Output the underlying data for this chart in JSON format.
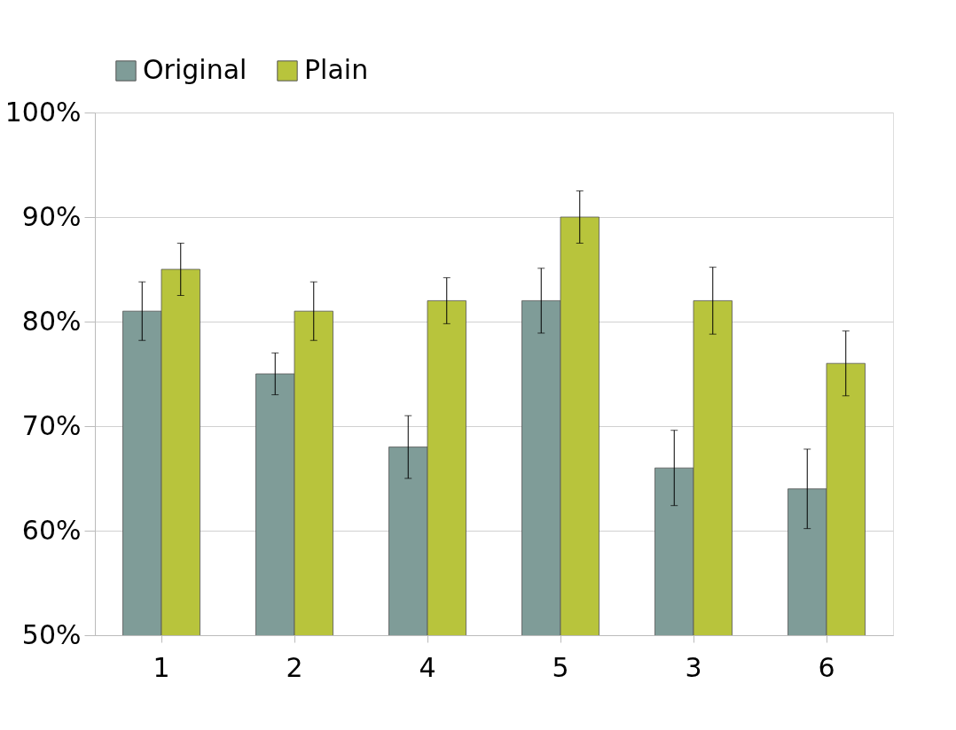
{
  "chart_data": {
    "type": "bar",
    "categories": [
      "1",
      "2",
      "4",
      "5",
      "3",
      "6"
    ],
    "series": [
      {
        "name": "Original",
        "color": "#7f9c98",
        "values": [
          81,
          75,
          68,
          82,
          66,
          64
        ],
        "errors": [
          2.8,
          2,
          3,
          3.1,
          3.6,
          3.8
        ]
      },
      {
        "name": "Plain",
        "color": "#b8c43c",
        "values": [
          85,
          81,
          82,
          90,
          82,
          76
        ],
        "errors": [
          2.5,
          2.8,
          2.2,
          2.5,
          3.2,
          3.1
        ]
      }
    ],
    "ylim": [
      50,
      100
    ],
    "yticks": [
      {
        "value": 50,
        "label": "50%"
      },
      {
        "value": 60,
        "label": "60%"
      },
      {
        "value": 70,
        "label": "70%"
      },
      {
        "value": 80,
        "label": "80%"
      },
      {
        "value": 90,
        "label": "90%"
      },
      {
        "value": 100,
        "label": "100%"
      }
    ],
    "grid": "y",
    "legend": "top left"
  }
}
